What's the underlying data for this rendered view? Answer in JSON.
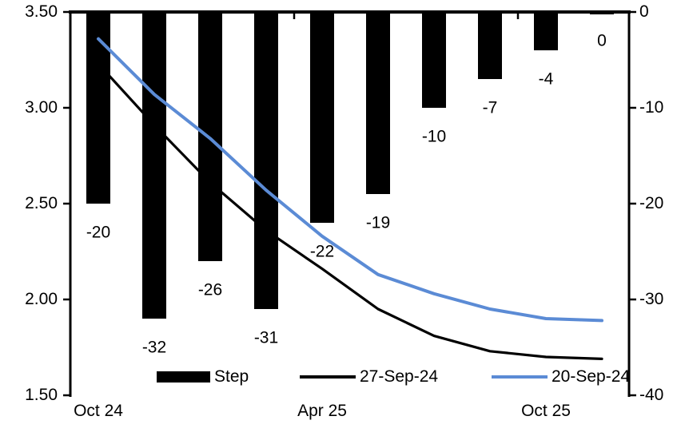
{
  "chart_data": {
    "type": "combo",
    "title": "",
    "n_categories": 10,
    "bar_series": {
      "name": "Step",
      "axis": "right",
      "unit": "bp",
      "values": [
        -20,
        -32,
        -26,
        -31,
        -22,
        -19,
        -10,
        -7,
        -4,
        0
      ],
      "labels": [
        "-20",
        "-32",
        "-26",
        "-31",
        "-22",
        "-19",
        "-10",
        "-7",
        "-4",
        "0"
      ]
    },
    "line_series": [
      {
        "name": "27-Sep-24",
        "axis": "left",
        "color": "#000000",
        "values": [
          3.23,
          2.91,
          2.61,
          2.36,
          2.16,
          1.95,
          1.81,
          1.73,
          1.7,
          1.69
        ]
      },
      {
        "name": "20-Sep-24",
        "axis": "left",
        "color": "#5b8bd5",
        "values": [
          3.36,
          3.07,
          2.84,
          2.57,
          2.33,
          2.13,
          2.03,
          1.95,
          1.9,
          1.89
        ]
      }
    ],
    "left_axis": {
      "min": 1.5,
      "max": 3.5,
      "ticks": [
        "3.50",
        "3.00",
        "2.50",
        "2.00",
        "1.50"
      ]
    },
    "right_axis": {
      "min": -40,
      "max": 0,
      "ticks": [
        "0",
        "-10",
        "-20",
        "-30",
        "-40"
      ]
    },
    "x_axis": {
      "labels": [
        "Oct 24",
        "Apr 25",
        "Oct 25"
      ],
      "label_category_index": [
        0,
        4,
        8
      ],
      "grid": false
    },
    "legend": {
      "position": "bottom",
      "items": [
        {
          "label": "Step",
          "type": "bar",
          "color": "#000000"
        },
        {
          "label": "27-Sep-24",
          "type": "line",
          "color": "#000000"
        },
        {
          "label": "20-Sep-24",
          "type": "line",
          "color": "#5b8bd5"
        }
      ]
    },
    "colors": {
      "bar": "#000000",
      "background": "#ffffff"
    }
  }
}
